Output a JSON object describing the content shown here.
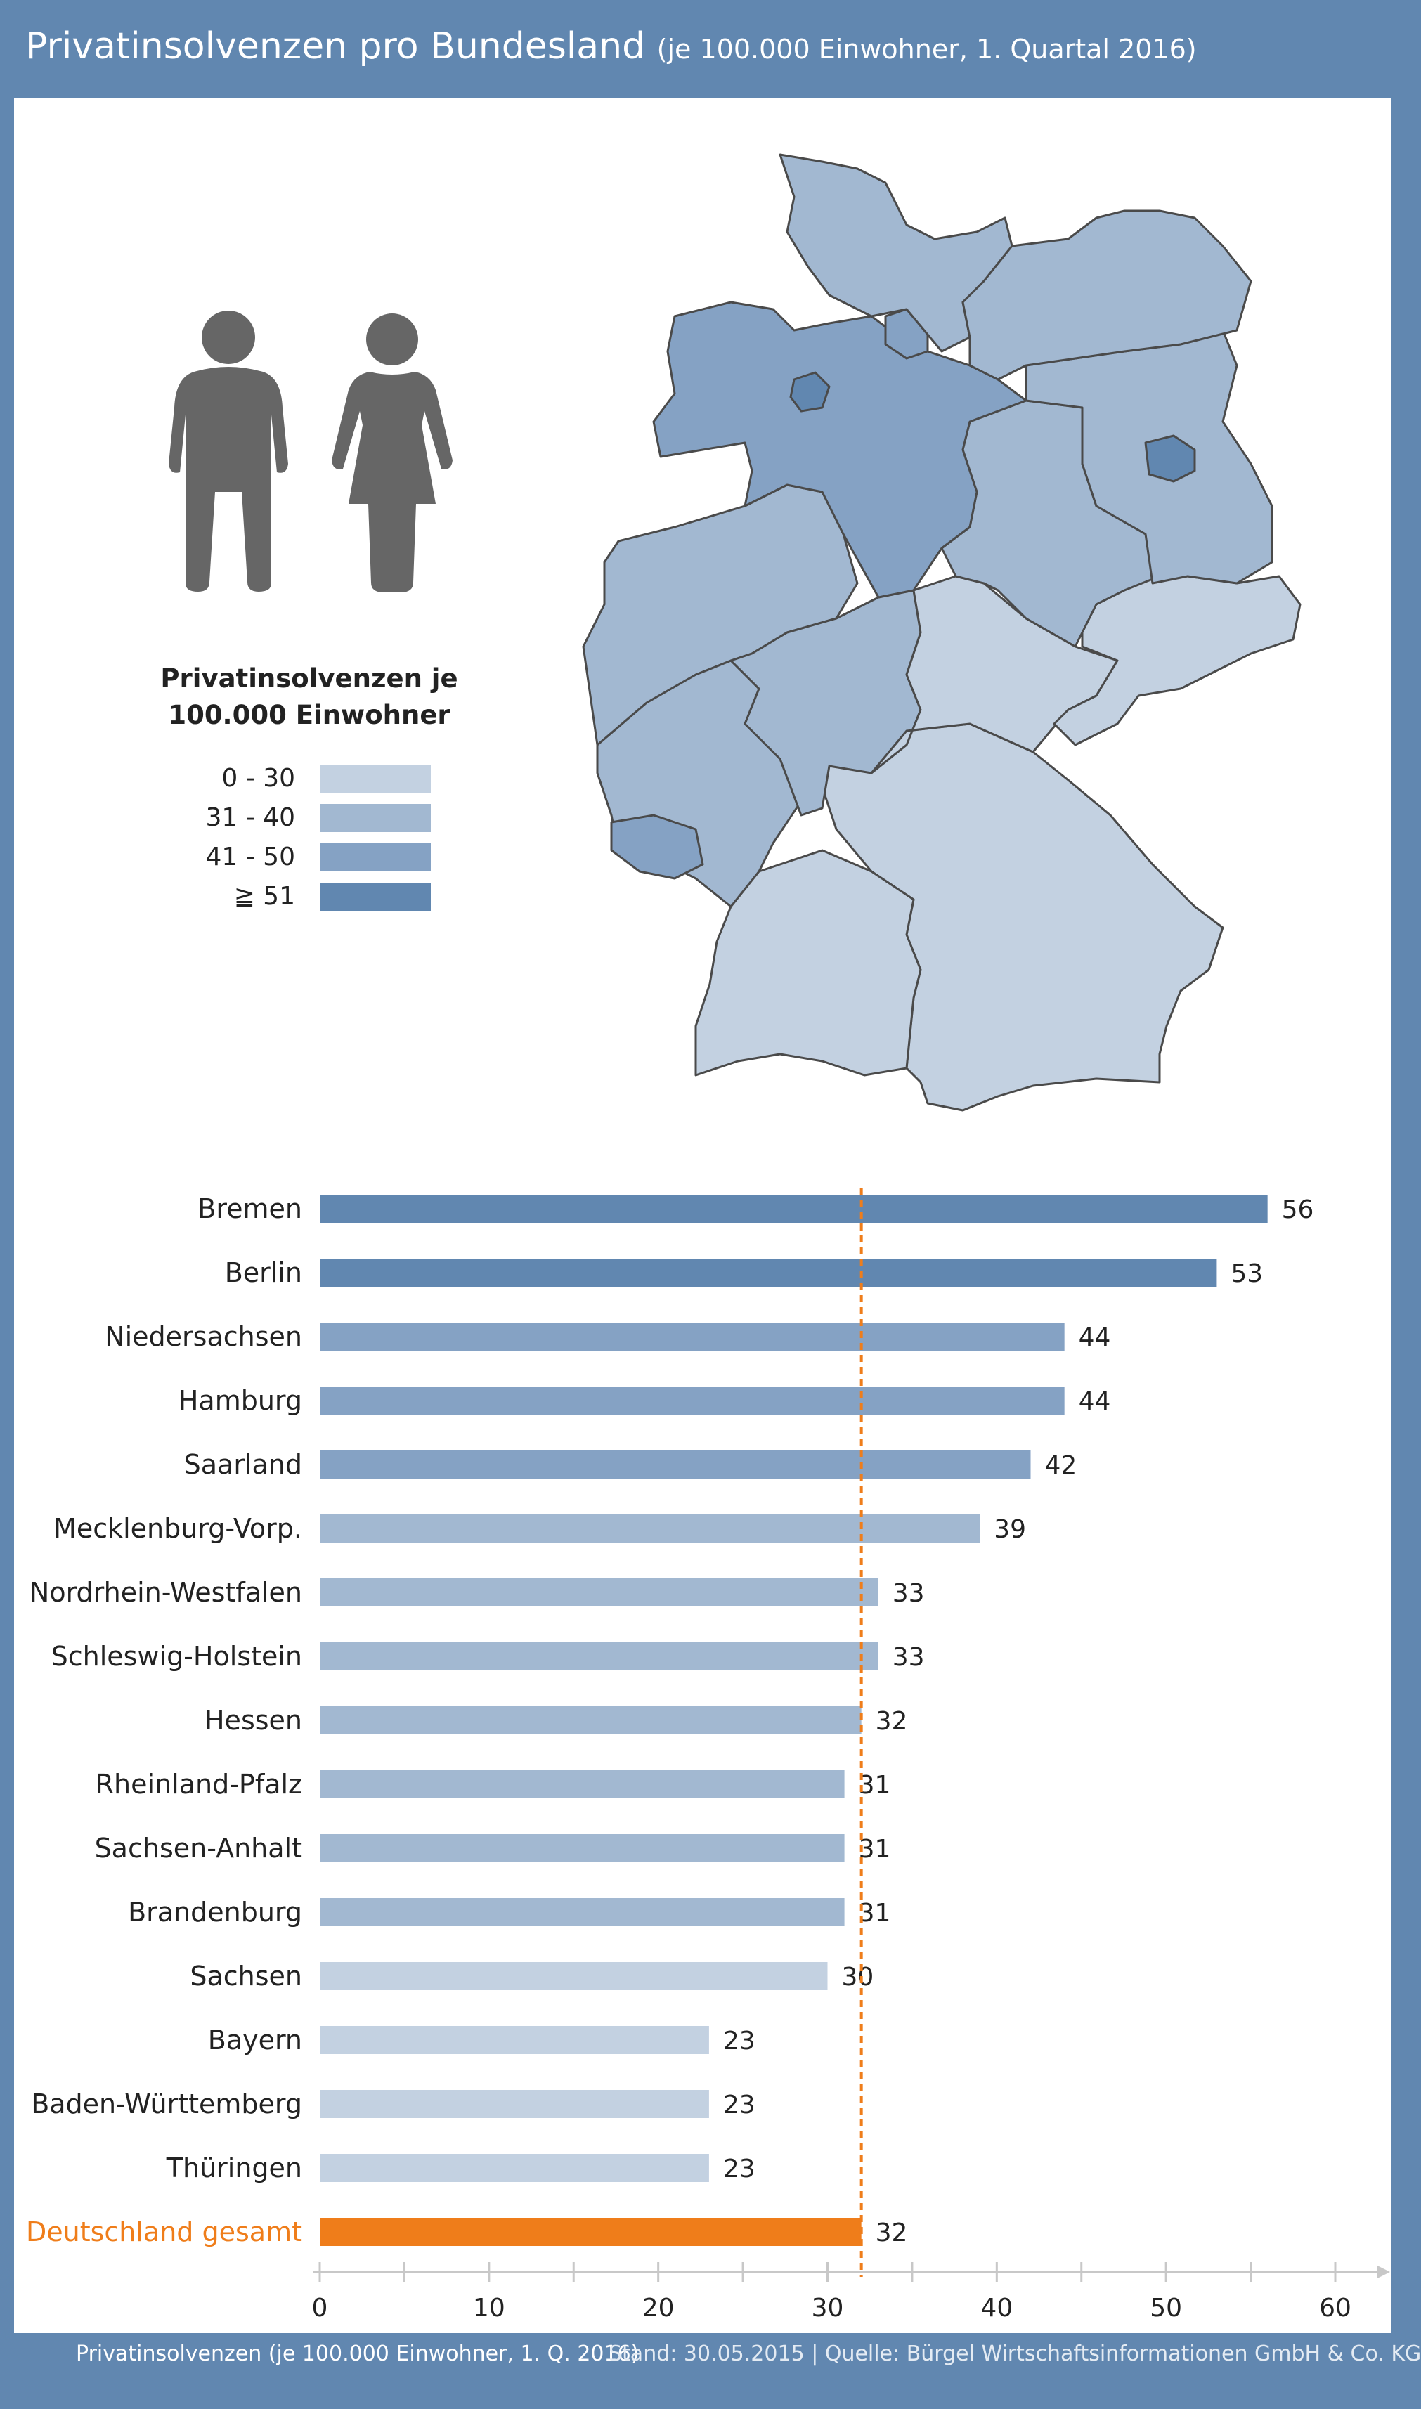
{
  "header": {
    "title": "Privatinsolvenzen pro Bundesland",
    "subtitle": "(je 100.000 Einwohner, 1. Quartal 2016)"
  },
  "icons": [
    "male-person-icon",
    "female-person-icon"
  ],
  "legend": {
    "title_line1": "Privatinsolvenzen je",
    "title_line2": "100.000 Einwohner",
    "classes": [
      {
        "label": "0 - 30",
        "color": "#c3d1e1"
      },
      {
        "label": "31 - 40",
        "color": "#a2b8d1"
      },
      {
        "label": "41 - 50",
        "color": "#85a2c4"
      },
      {
        "label": "≧ 51",
        "color": "#6187b0"
      }
    ]
  },
  "map": {
    "regions": [
      {
        "name": "Schleswig-Holstein",
        "color": "#a2b8d1"
      },
      {
        "name": "Hamburg",
        "color": "#85a2c4"
      },
      {
        "name": "Mecklenburg-Vorp.",
        "color": "#a2b8d1"
      },
      {
        "name": "Niedersachsen",
        "color": "#85a2c4"
      },
      {
        "name": "Bremen",
        "color": "#6187b0"
      },
      {
        "name": "Berlin",
        "color": "#6187b0"
      },
      {
        "name": "Brandenburg",
        "color": "#a2b8d1"
      },
      {
        "name": "Sachsen-Anhalt",
        "color": "#a2b8d1"
      },
      {
        "name": "Nordrhein-Westfalen",
        "color": "#a2b8d1"
      },
      {
        "name": "Hessen",
        "color": "#a2b8d1"
      },
      {
        "name": "Thüringen",
        "color": "#c3d1e1"
      },
      {
        "name": "Sachsen",
        "color": "#c3d1e1"
      },
      {
        "name": "Rheinland-Pfalz",
        "color": "#a2b8d1"
      },
      {
        "name": "Saarland",
        "color": "#85a2c4"
      },
      {
        "name": "Baden-Württemberg",
        "color": "#c3d1e1"
      },
      {
        "name": "Bayern",
        "color": "#c3d1e1"
      }
    ]
  },
  "chart_data": {
    "type": "bar",
    "orientation": "horizontal",
    "categories": [
      "Bremen",
      "Berlin",
      "Niedersachsen",
      "Hamburg",
      "Saarland",
      "Mecklenburg-Vorp.",
      "Nordrhein-Westfalen",
      "Schleswig-Holstein",
      "Hessen",
      "Rheinland-Pfalz",
      "Sachsen-Anhalt",
      "Brandenburg",
      "Sachsen",
      "Bayern",
      "Baden-Württemberg",
      "Thüringen",
      "Deutschland gesamt"
    ],
    "values": [
      56,
      53,
      44,
      44,
      42,
      39,
      33,
      33,
      32,
      31,
      31,
      31,
      30,
      23,
      23,
      23,
      32
    ],
    "bar_colors": [
      "#6187b0",
      "#6187b0",
      "#85a2c4",
      "#85a2c4",
      "#85a2c4",
      "#a2b8d1",
      "#a2b8d1",
      "#a2b8d1",
      "#a2b8d1",
      "#a2b8d1",
      "#a2b8d1",
      "#a2b8d1",
      "#c3d1e1",
      "#c3d1e1",
      "#c3d1e1",
      "#c3d1e1",
      "#ef7d1a"
    ],
    "highlight_category": "Deutschland gesamt",
    "highlight_color": "#ef7d1a",
    "reference_line": {
      "value": 32,
      "style": "dashed",
      "color": "#ef7d1a"
    },
    "xlim": [
      0,
      60
    ],
    "xticks": [
      "0",
      "10",
      "20",
      "30",
      "40",
      "50",
      "60"
    ],
    "grid": false,
    "series": [
      {
        "name": "Privatinsolvenzen (je 100.000 Einwohner, 1. Q. 2016)",
        "color": "#6187b0"
      }
    ]
  },
  "footer": {
    "series_label": "Privatinsolvenzen (je 100.000 Einwohner, 1. Q. 2016)",
    "source": "Stand: 30.05.2015 | Quelle: Bürgel Wirtschaftsinformationen GmbH & Co. KG"
  }
}
